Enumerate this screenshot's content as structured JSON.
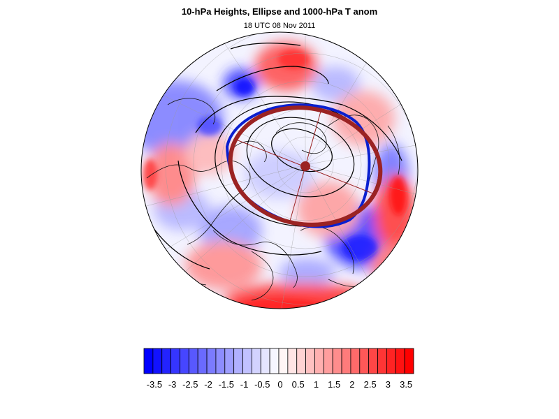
{
  "title": "10-hPa Heights, Ellipse and 1000-hPa T anom",
  "subtitle": "18 UTC 08 Nov 2011",
  "colorbar": {
    "labels": [
      "-3.5",
      "-3",
      "-2.5",
      "-2",
      "-1.5",
      "-1",
      "-0.5",
      "0",
      "0.5",
      "1",
      "1.5",
      "2",
      "2.5",
      "3",
      "3.5"
    ],
    "min_color": "#0000ff",
    "mid_color": "#ffffff",
    "max_color": "#ff0000"
  },
  "map": {
    "projection": "orthographic-north-polar",
    "field_colors": {
      "cold": "#3a3aff",
      "warm": "#ff2020",
      "neutral": "#ffffff"
    },
    "ellipse_color": "#9b2323",
    "blue_contour_color": "#0a1fd0",
    "contour_color": "#000000"
  }
}
